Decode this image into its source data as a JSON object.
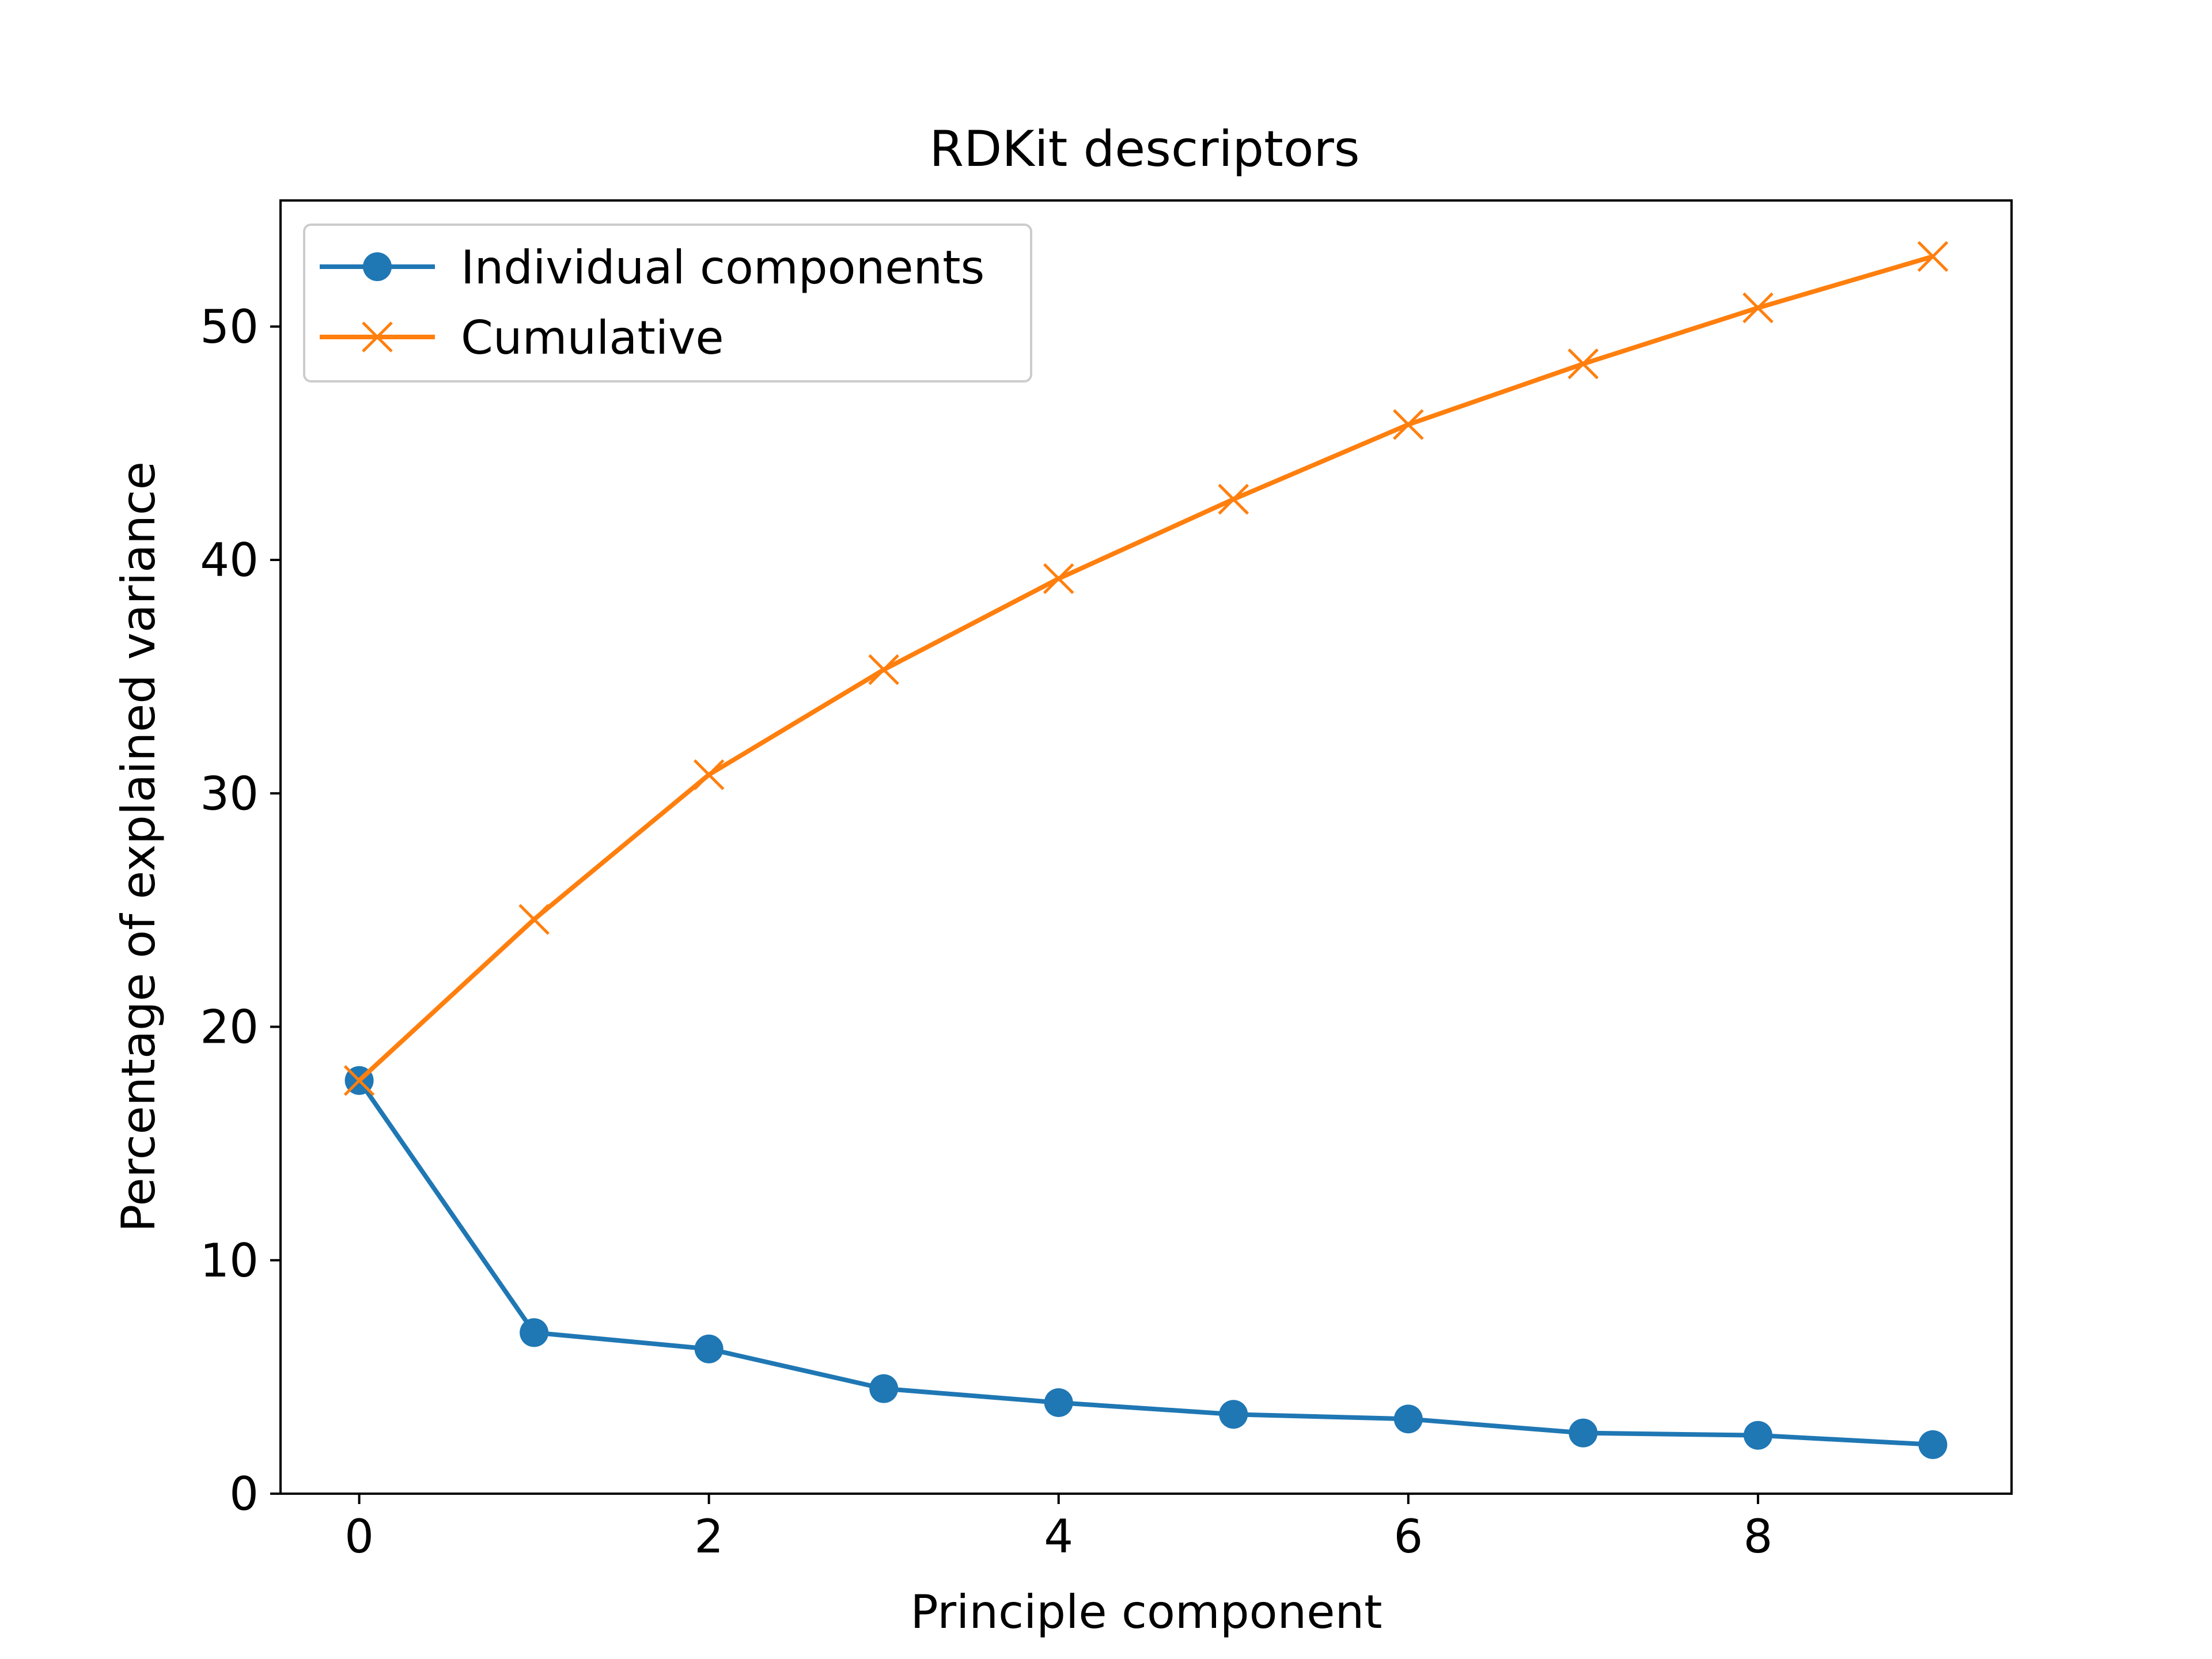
{
  "chart_data": {
    "type": "line",
    "title": "RDKit descriptors",
    "xlabel": "Principle component",
    "ylabel": "Percentage of explained variance",
    "xlim": [
      -0.45,
      9.45
    ],
    "ylim": [
      0,
      55.4
    ],
    "xticks": [
      0,
      2,
      4,
      6,
      8
    ],
    "yticks": [
      0,
      10,
      20,
      30,
      40,
      50
    ],
    "grid": false,
    "legend_position": "top-left",
    "x": [
      0,
      1,
      2,
      3,
      4,
      5,
      6,
      7,
      8,
      9
    ],
    "series": [
      {
        "name": "Individual components",
        "marker": "circle",
        "color": "#1f77b4",
        "values": [
          17.7,
          6.9,
          6.2,
          4.5,
          3.9,
          3.4,
          3.2,
          2.6,
          2.5,
          2.1
        ]
      },
      {
        "name": "Cumulative",
        "marker": "x",
        "color": "#ff7f0e",
        "values": [
          17.7,
          24.6,
          30.8,
          35.3,
          39.2,
          42.6,
          45.8,
          48.4,
          50.8,
          53.0
        ]
      }
    ]
  }
}
